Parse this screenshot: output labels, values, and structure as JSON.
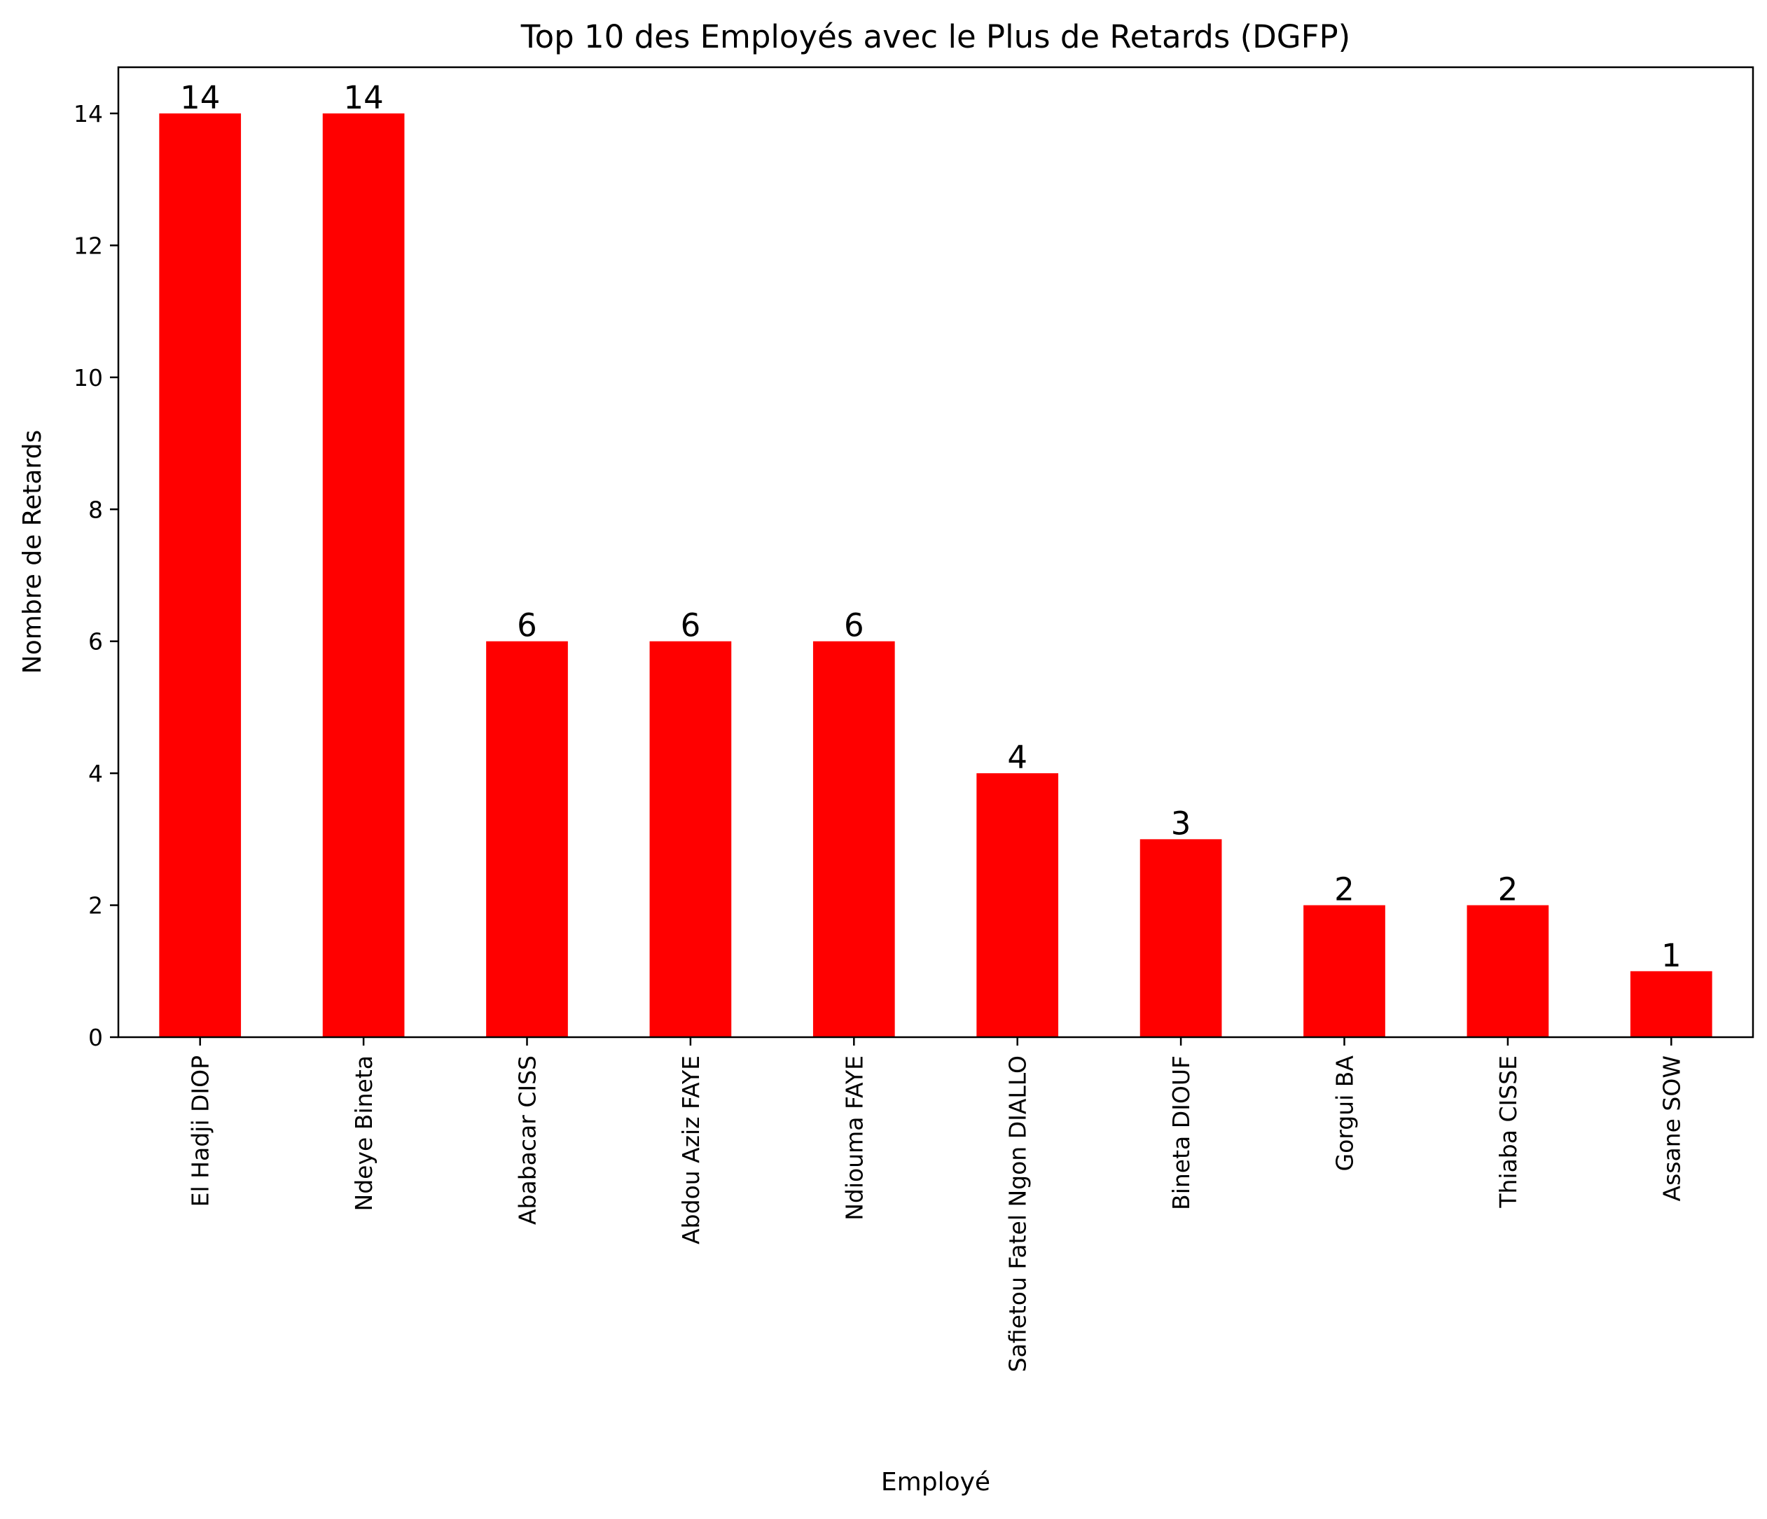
{
  "chart_data": {
    "type": "bar",
    "title": "Top 10 des Employés avec le Plus de Retards (DGFP)",
    "xlabel": "Employé",
    "ylabel": "Nombre de Retards",
    "categories": [
      "El Hadji DIOP",
      "Ndeye Bineta",
      "Ababacar CISS",
      "Abdou Aziz FAYE",
      "Ndiouma FAYE",
      "Safietou Fatel Ngon DIALLO",
      "Bineta DIOUF",
      "Gorgui BA",
      "Thiaba CISSE",
      "Assane SOW"
    ],
    "values": [
      14,
      14,
      6,
      6,
      6,
      4,
      3,
      2,
      2,
      1
    ],
    "data_labels": [
      "14",
      "14",
      "6",
      "6",
      "6",
      "4",
      "3",
      "2",
      "2",
      "1"
    ],
    "ylim": [
      0,
      14.7
    ],
    "yticks": [
      "0",
      "2",
      "4",
      "6",
      "8",
      "10",
      "12",
      "14"
    ],
    "bar_color": "#ff0000",
    "grid": false,
    "legend": "none"
  }
}
